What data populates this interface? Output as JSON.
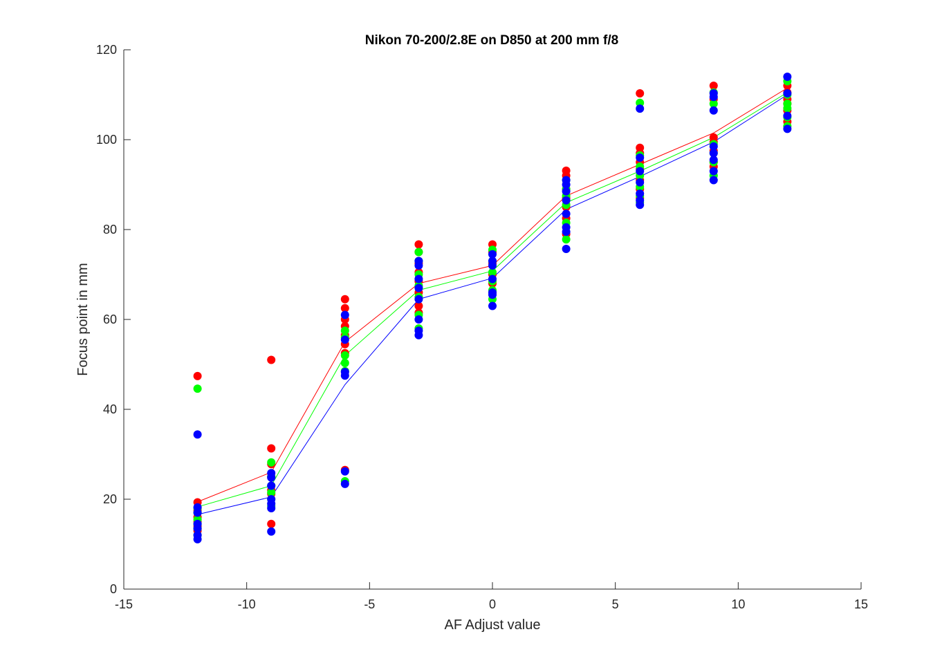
{
  "chart_data": {
    "type": "scatter",
    "title": "Nikon 70-200/2.8E on D850 at 200 mm f/8",
    "xlabel": "AF Adjust value",
    "ylabel": "Focus point in mm",
    "xlim": [
      -15,
      15
    ],
    "ylim": [
      0,
      120
    ],
    "xticks": [
      "-15",
      "-10",
      "-5",
      "0",
      "5",
      "10",
      "15"
    ],
    "yticks": [
      "0",
      "20",
      "40",
      "60",
      "80",
      "100",
      "120"
    ],
    "grid": false,
    "legend": "none",
    "series": [
      {
        "color": "#ff0000",
        "points": [
          [
            -12,
            47.4
          ],
          [
            -12,
            19.3
          ],
          [
            -12,
            17.5
          ],
          [
            -12,
            16.0
          ],
          [
            -12,
            15.0
          ],
          [
            -12,
            14.0
          ],
          [
            -12,
            13.0
          ],
          [
            -9,
            51.0
          ],
          [
            -9,
            31.3
          ],
          [
            -9,
            27.8
          ],
          [
            -9,
            25.0
          ],
          [
            -9,
            22.0
          ],
          [
            -9,
            21.2
          ],
          [
            -9,
            14.5
          ],
          [
            -6,
            64.5
          ],
          [
            -6,
            62.5
          ],
          [
            -6,
            60.0
          ],
          [
            -6,
            58.5
          ],
          [
            -6,
            56.5
          ],
          [
            -6,
            54.5
          ],
          [
            -6,
            52.5
          ],
          [
            -6,
            26.5
          ],
          [
            -3,
            76.7
          ],
          [
            -3,
            75.0
          ],
          [
            -3,
            72.5
          ],
          [
            -3,
            70.5
          ],
          [
            -3,
            68.5
          ],
          [
            -3,
            66.0
          ],
          [
            -3,
            63.0
          ],
          [
            -3,
            61.5
          ],
          [
            0,
            76.7
          ],
          [
            0,
            75.0
          ],
          [
            0,
            72.5
          ],
          [
            0,
            70.0
          ],
          [
            0,
            68.0
          ],
          [
            0,
            66.0
          ],
          [
            3,
            93.1
          ],
          [
            3,
            92.0
          ],
          [
            3,
            89.0
          ],
          [
            3,
            87.0
          ],
          [
            3,
            85.0
          ],
          [
            3,
            82.5
          ],
          [
            3,
            79.0
          ],
          [
            6,
            110.3
          ],
          [
            6,
            98.2
          ],
          [
            6,
            97.0
          ],
          [
            6,
            95.0
          ],
          [
            6,
            93.5
          ],
          [
            6,
            91.0
          ],
          [
            6,
            89.0
          ],
          [
            6,
            87.0
          ],
          [
            9,
            112.0
          ],
          [
            9,
            109.0
          ],
          [
            9,
            100.5
          ],
          [
            9,
            99.5
          ],
          [
            9,
            97.5
          ],
          [
            9,
            95.0
          ],
          [
            9,
            94.0
          ],
          [
            12,
            112.0
          ],
          [
            12,
            110.5
          ],
          [
            12,
            109.0
          ],
          [
            12,
            108.0
          ],
          [
            12,
            106.5
          ],
          [
            12,
            104.0
          ]
        ],
        "line": [
          [
            -12,
            19.4
          ],
          [
            -9,
            26.0
          ],
          [
            -6,
            55.0
          ],
          [
            -3,
            68.0
          ],
          [
            0,
            72.0
          ],
          [
            3,
            87.5
          ],
          [
            6,
            94.5
          ],
          [
            9,
            101.5
          ],
          [
            12,
            111.5
          ]
        ]
      },
      {
        "color": "#00ff00",
        "points": [
          [
            -12,
            44.6
          ],
          [
            -12,
            18.0
          ],
          [
            -12,
            17.0
          ],
          [
            -12,
            15.5
          ],
          [
            -12,
            14.5
          ],
          [
            -12,
            13.5
          ],
          [
            -12,
            12.0
          ],
          [
            -9,
            28.2
          ],
          [
            -9,
            25.0
          ],
          [
            -9,
            23.0
          ],
          [
            -9,
            21.5
          ],
          [
            -9,
            20.0
          ],
          [
            -9,
            18.5
          ],
          [
            -6,
            57.5
          ],
          [
            -6,
            56.0
          ],
          [
            -6,
            52.0
          ],
          [
            -6,
            50.3
          ],
          [
            -6,
            48.5
          ],
          [
            -6,
            24.0
          ],
          [
            -3,
            75.0
          ],
          [
            -3,
            73.0
          ],
          [
            -3,
            70.0
          ],
          [
            -3,
            67.5
          ],
          [
            -3,
            65.0
          ],
          [
            -3,
            61.0
          ],
          [
            -3,
            58.0
          ],
          [
            0,
            75.5
          ],
          [
            0,
            73.0
          ],
          [
            0,
            70.5
          ],
          [
            0,
            68.5
          ],
          [
            0,
            66.5
          ],
          [
            0,
            64.5
          ],
          [
            3,
            91.0
          ],
          [
            3,
            89.0
          ],
          [
            3,
            87.5
          ],
          [
            3,
            85.5
          ],
          [
            3,
            81.5
          ],
          [
            3,
            77.8
          ],
          [
            6,
            108.2
          ],
          [
            6,
            96.5
          ],
          [
            6,
            94.0
          ],
          [
            6,
            92.0
          ],
          [
            6,
            89.5
          ],
          [
            6,
            87.5
          ],
          [
            6,
            86.0
          ],
          [
            9,
            110.5
          ],
          [
            9,
            108.0
          ],
          [
            9,
            99.0
          ],
          [
            9,
            97.0
          ],
          [
            9,
            95.0
          ],
          [
            9,
            92.0
          ],
          [
            12,
            113.0
          ],
          [
            12,
            110.0
          ],
          [
            12,
            108.0
          ],
          [
            12,
            107.0
          ],
          [
            12,
            105.0
          ],
          [
            12,
            103.0
          ]
        ],
        "line": [
          [
            -12,
            18.3
          ],
          [
            -9,
            23.0
          ],
          [
            -6,
            52.0
          ],
          [
            -3,
            66.5
          ],
          [
            0,
            70.8
          ],
          [
            3,
            86.0
          ],
          [
            6,
            93.0
          ],
          [
            9,
            100.5
          ],
          [
            12,
            110.5
          ]
        ]
      },
      {
        "color": "#0000ff",
        "points": [
          [
            -12,
            34.4
          ],
          [
            -12,
            18.2
          ],
          [
            -12,
            17.0
          ],
          [
            -12,
            14.5
          ],
          [
            -12,
            13.5
          ],
          [
            -12,
            12.0
          ],
          [
            -12,
            11.1
          ],
          [
            -9,
            25.8
          ],
          [
            -9,
            24.8
          ],
          [
            -9,
            23.0
          ],
          [
            -9,
            20.0
          ],
          [
            -9,
            19.0
          ],
          [
            -9,
            18.0
          ],
          [
            -9,
            12.8
          ],
          [
            -6,
            61.0
          ],
          [
            -6,
            55.5
          ],
          [
            -6,
            48.3
          ],
          [
            -6,
            47.5
          ],
          [
            -6,
            26.2
          ],
          [
            -6,
            23.4
          ],
          [
            -3,
            73.0
          ],
          [
            -3,
            72.0
          ],
          [
            -3,
            69.0
          ],
          [
            -3,
            67.0
          ],
          [
            -3,
            64.5
          ],
          [
            -3,
            60.0
          ],
          [
            -3,
            57.5
          ],
          [
            -3,
            56.5
          ],
          [
            0,
            74.5
          ],
          [
            0,
            73.0
          ],
          [
            0,
            72.0
          ],
          [
            0,
            69.0
          ],
          [
            0,
            66.0
          ],
          [
            0,
            65.5
          ],
          [
            0,
            63.0
          ],
          [
            3,
            91.0
          ],
          [
            3,
            90.0
          ],
          [
            3,
            88.5
          ],
          [
            3,
            86.5
          ],
          [
            3,
            83.5
          ],
          [
            3,
            80.5
          ],
          [
            3,
            79.5
          ],
          [
            3,
            75.7
          ],
          [
            6,
            106.9
          ],
          [
            6,
            96.0
          ],
          [
            6,
            93.0
          ],
          [
            6,
            90.5
          ],
          [
            6,
            88.0
          ],
          [
            6,
            86.5
          ],
          [
            6,
            85.5
          ],
          [
            9,
            110.3
          ],
          [
            9,
            109.5
          ],
          [
            9,
            106.5
          ],
          [
            9,
            98.5
          ],
          [
            9,
            97.0
          ],
          [
            9,
            95.5
          ],
          [
            9,
            93.0
          ],
          [
            9,
            91.0
          ],
          [
            12,
            114.0
          ],
          [
            12,
            110.3
          ],
          [
            12,
            105.3
          ],
          [
            12,
            102.4
          ]
        ],
        "line": [
          [
            -12,
            16.6
          ],
          [
            -9,
            20.5
          ],
          [
            -6,
            45.5
          ],
          [
            -3,
            64.5
          ],
          [
            0,
            69.2
          ],
          [
            3,
            84.5
          ],
          [
            6,
            91.8
          ],
          [
            9,
            99.5
          ],
          [
            12,
            110.0
          ]
        ]
      }
    ]
  }
}
